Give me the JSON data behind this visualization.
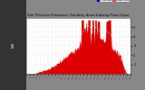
{
  "title": "Solar PV/Inverter Performance  East Array  Actual & Average Power Output",
  "bg_color": "#c8c8c8",
  "plot_bg_color": "#ffffff",
  "bar_color": "#dd0000",
  "avg_line_color": "#dddddd",
  "legend_colors_actual": "#0000cc",
  "legend_colors_avg": "#ff4444",
  "ylabel": "kW",
  "ylim": [
    0,
    6.0
  ],
  "grid_color": "#aaaaaa",
  "num_points": 300,
  "left_bg_color": "#2a2a2a",
  "fig_bg_color": "#999999"
}
